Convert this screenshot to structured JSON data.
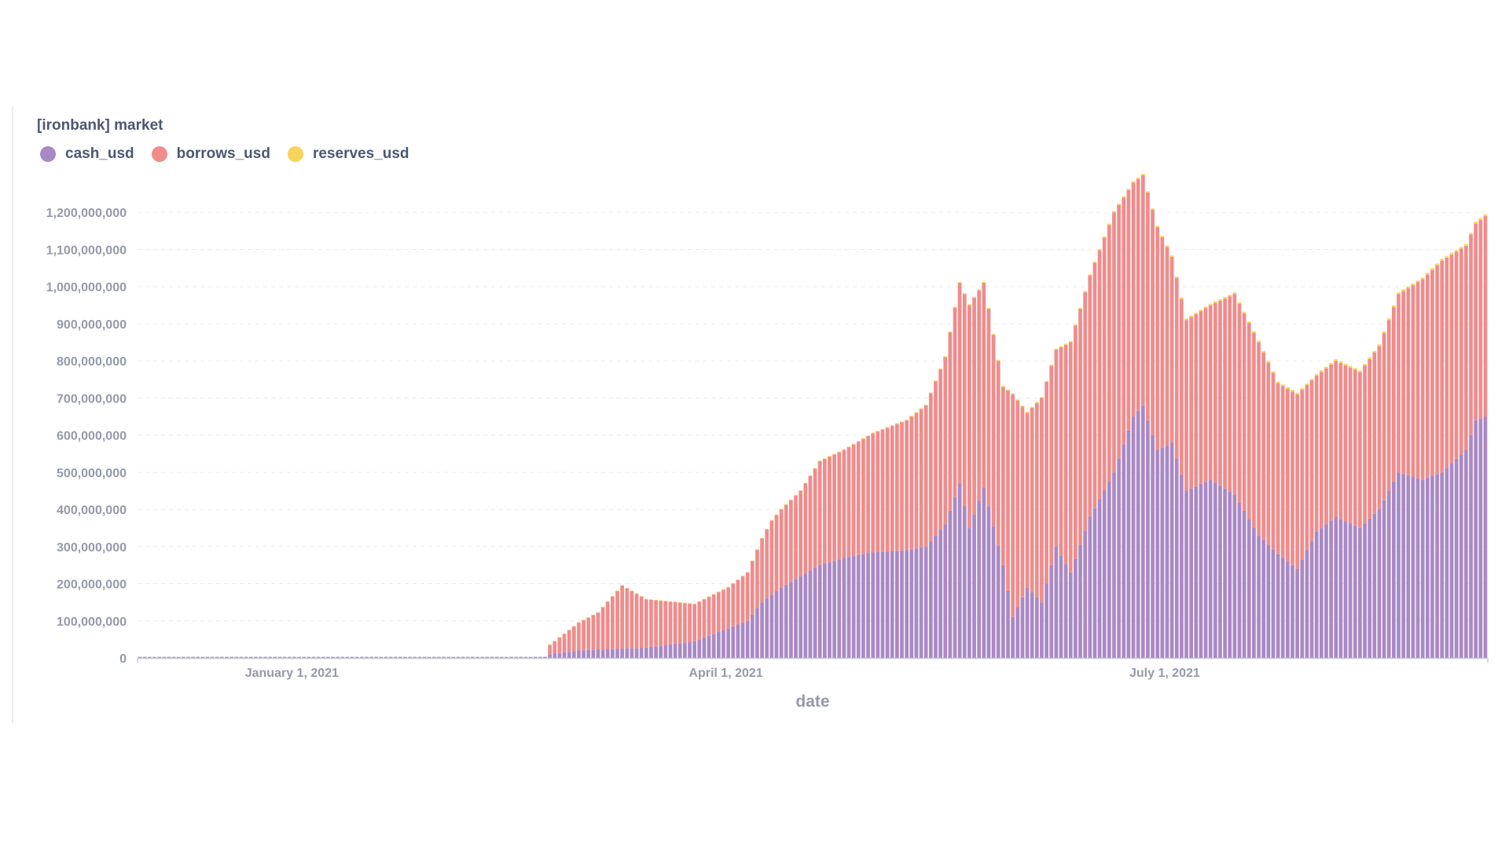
{
  "colors": {
    "cash_usd": "#a989c5",
    "borrows_usd": "#ef8c8c",
    "reserves_usd": "#f9d45c"
  },
  "chart_data": {
    "type": "bar",
    "stacked": true,
    "title": "[ironbank] market",
    "xlabel": "date",
    "ylabel": "",
    "ylim": [
      0,
      1300000000
    ],
    "yticks": [
      0,
      100000000,
      200000000,
      300000000,
      400000000,
      500000000,
      600000000,
      700000000,
      800000000,
      900000000,
      1000000000,
      1100000000,
      1200000000
    ],
    "x_range": [
      "2020-11-30",
      "2021-09-05"
    ],
    "x_ticks": [
      {
        "date": "2021-01-01",
        "label": "January 1, 2021"
      },
      {
        "date": "2021-04-01",
        "label": "April 1, 2021"
      },
      {
        "date": "2021-07-01",
        "label": "July 1, 2021"
      }
    ],
    "grid": "horizontal-dashed",
    "legend_position": "top-left",
    "series": [
      {
        "name": "cash_usd",
        "points": [
          [
            "2020-11-30",
            3000000
          ],
          [
            "2021-02-22",
            3000000
          ],
          [
            "2021-02-23",
            10000000
          ],
          [
            "2021-03-01",
            20000000
          ],
          [
            "2021-03-10",
            25000000
          ],
          [
            "2021-03-15",
            28000000
          ],
          [
            "2021-03-25",
            45000000
          ],
          [
            "2021-04-01",
            80000000
          ],
          [
            "2021-04-05",
            100000000
          ],
          [
            "2021-04-08",
            150000000
          ],
          [
            "2021-04-12",
            190000000
          ],
          [
            "2021-04-16",
            220000000
          ],
          [
            "2021-04-20",
            250000000
          ],
          [
            "2021-04-25",
            270000000
          ],
          [
            "2021-05-01",
            285000000
          ],
          [
            "2021-05-08",
            290000000
          ],
          [
            "2021-05-12",
            300000000
          ],
          [
            "2021-05-16",
            360000000
          ],
          [
            "2021-05-19",
            470000000
          ],
          [
            "2021-05-21",
            350000000
          ],
          [
            "2021-05-24",
            460000000
          ],
          [
            "2021-05-28",
            250000000
          ],
          [
            "2021-05-30",
            110000000
          ],
          [
            "2021-06-02",
            190000000
          ],
          [
            "2021-06-05",
            150000000
          ],
          [
            "2021-06-08",
            300000000
          ],
          [
            "2021-06-11",
            230000000
          ],
          [
            "2021-06-15",
            380000000
          ],
          [
            "2021-06-20",
            500000000
          ],
          [
            "2021-06-24",
            650000000
          ],
          [
            "2021-06-26",
            680000000
          ],
          [
            "2021-06-29",
            560000000
          ],
          [
            "2021-07-02",
            580000000
          ],
          [
            "2021-07-05",
            450000000
          ],
          [
            "2021-07-10",
            480000000
          ],
          [
            "2021-07-15",
            440000000
          ],
          [
            "2021-07-20",
            330000000
          ],
          [
            "2021-07-24",
            280000000
          ],
          [
            "2021-07-28",
            240000000
          ],
          [
            "2021-08-01",
            340000000
          ],
          [
            "2021-08-05",
            380000000
          ],
          [
            "2021-08-10",
            350000000
          ],
          [
            "2021-08-14",
            400000000
          ],
          [
            "2021-08-18",
            500000000
          ],
          [
            "2021-08-23",
            480000000
          ],
          [
            "2021-08-27",
            500000000
          ],
          [
            "2021-09-01",
            560000000
          ],
          [
            "2021-09-03",
            640000000
          ],
          [
            "2021-09-05",
            650000000
          ]
        ]
      },
      {
        "name": "borrows_usd",
        "points": [
          [
            "2020-11-30",
            0
          ],
          [
            "2021-02-22",
            0
          ],
          [
            "2021-02-23",
            25000000
          ],
          [
            "2021-03-01",
            75000000
          ],
          [
            "2021-03-05",
            100000000
          ],
          [
            "2021-03-10",
            170000000
          ],
          [
            "2021-03-15",
            130000000
          ],
          [
            "2021-03-25",
            100000000
          ],
          [
            "2021-04-01",
            110000000
          ],
          [
            "2021-04-05",
            130000000
          ],
          [
            "2021-04-10",
            200000000
          ],
          [
            "2021-04-16",
            230000000
          ],
          [
            "2021-04-20",
            280000000
          ],
          [
            "2021-04-25",
            290000000
          ],
          [
            "2021-05-01",
            320000000
          ],
          [
            "2021-05-08",
            350000000
          ],
          [
            "2021-05-12",
            380000000
          ],
          [
            "2021-05-16",
            450000000
          ],
          [
            "2021-05-19",
            540000000
          ],
          [
            "2021-05-21",
            600000000
          ],
          [
            "2021-05-24",
            550000000
          ],
          [
            "2021-05-28",
            480000000
          ],
          [
            "2021-05-30",
            600000000
          ],
          [
            "2021-06-02",
            470000000
          ],
          [
            "2021-06-05",
            550000000
          ],
          [
            "2021-06-08",
            530000000
          ],
          [
            "2021-06-11",
            620000000
          ],
          [
            "2021-06-15",
            650000000
          ],
          [
            "2021-06-20",
            700000000
          ],
          [
            "2021-06-24",
            630000000
          ],
          [
            "2021-06-26",
            620000000
          ],
          [
            "2021-06-29",
            600000000
          ],
          [
            "2021-07-02",
            500000000
          ],
          [
            "2021-07-05",
            460000000
          ],
          [
            "2021-07-10",
            470000000
          ],
          [
            "2021-07-15",
            540000000
          ],
          [
            "2021-07-20",
            520000000
          ],
          [
            "2021-07-24",
            460000000
          ],
          [
            "2021-07-28",
            470000000
          ],
          [
            "2021-08-01",
            420000000
          ],
          [
            "2021-08-05",
            420000000
          ],
          [
            "2021-08-10",
            420000000
          ],
          [
            "2021-08-14",
            440000000
          ],
          [
            "2021-08-18",
            480000000
          ],
          [
            "2021-08-23",
            540000000
          ],
          [
            "2021-08-27",
            570000000
          ],
          [
            "2021-09-01",
            550000000
          ],
          [
            "2021-09-03",
            530000000
          ],
          [
            "2021-09-05",
            540000000
          ]
        ]
      },
      {
        "name": "reserves_usd",
        "points": [
          [
            "2020-11-30",
            0
          ],
          [
            "2021-02-22",
            0
          ],
          [
            "2021-02-23",
            1000000
          ],
          [
            "2021-05-01",
            2000000
          ],
          [
            "2021-07-01",
            4000000
          ],
          [
            "2021-09-05",
            5000000
          ]
        ]
      }
    ]
  }
}
